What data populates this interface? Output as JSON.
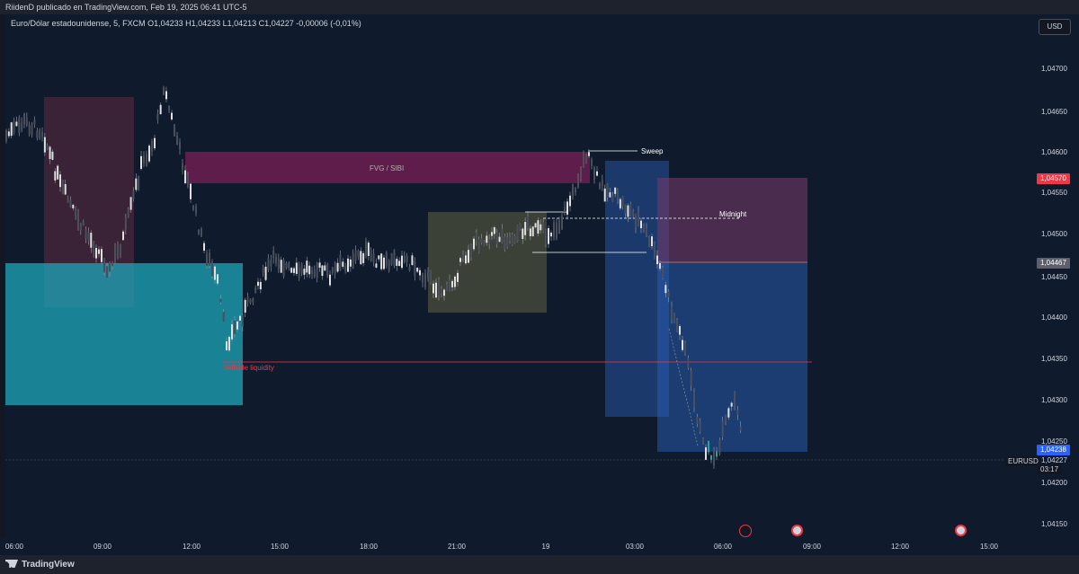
{
  "header": {
    "publisher": "RiidenD publicado en TradingView.com, Feb 19, 2025 06:41 UTC-5"
  },
  "legend": {
    "symbol_line": "Euro/Dólar estadounidense, 5, FXCM  O1,04233  H1,04233  L1,04213  C1,04227  -0,00006 (-0,01%)"
  },
  "currency_button": "USD",
  "price_axis": {
    "ticks": [
      "1,04700",
      "1,04650",
      "1,04600",
      "1,04550",
      "1,04500",
      "1,04450",
      "1,04400",
      "1,04350",
      "1,04300",
      "1,04250",
      "1,04200",
      "1,04150"
    ],
    "badge_red": "1,04570",
    "badge_gray": "1,04467",
    "badge_blue": "1,04238",
    "last_price": "1,04227",
    "countdown": "03:17",
    "symbol_tag": "EURUSD"
  },
  "time_axis": {
    "ticks": [
      "06:00",
      "09:00",
      "12:00",
      "15:00",
      "18:00",
      "21:00",
      "19",
      "03:00",
      "06:00",
      "09:00",
      "12:00",
      "15:00"
    ]
  },
  "annotations": {
    "fvg_label": "FVG / SIBI",
    "sweep_label": "Sweep",
    "midnight_label": "Midnight",
    "sellside_label": "Sellside liquidity"
  },
  "footer": {
    "brand": "TradingView"
  },
  "colors": {
    "background": "#0f1b2d",
    "pink_zone": "#5e2a4a",
    "cyan_zone": "#1fa6b8",
    "olive_zone": "#4a4c38",
    "blue_zone": "#1e4fa0",
    "sellside_line": "#f23645",
    "badge_red": "#f23645",
    "badge_blue": "#2962ff"
  }
}
